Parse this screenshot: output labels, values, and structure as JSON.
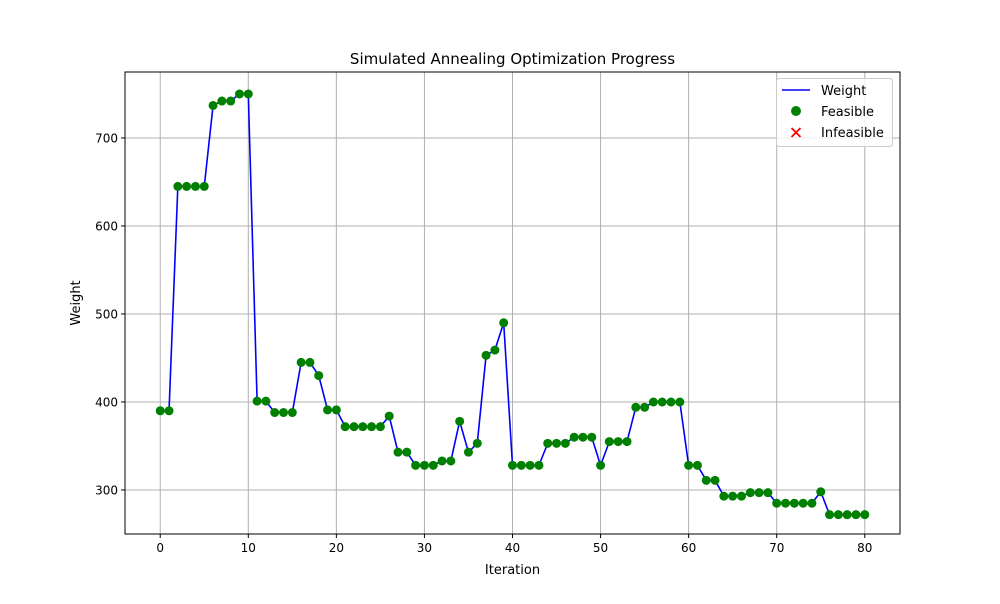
{
  "chart_data": {
    "type": "line",
    "title": "Simulated Annealing Optimization Progress",
    "xlabel": "Iteration",
    "ylabel": "Weight",
    "xlim": [
      -4,
      84
    ],
    "ylim": [
      250,
      775
    ],
    "xticks": [
      0,
      10,
      20,
      30,
      40,
      50,
      60,
      70,
      80
    ],
    "yticks": [
      300,
      400,
      500,
      600,
      700
    ],
    "grid": true,
    "legend_placement": "top-right",
    "legend": {
      "line": "Weight",
      "feasible": "Feasible",
      "infeasible": "Infeasible"
    },
    "colors": {
      "line": "#0000ff",
      "feasible": "#008000",
      "infeasible": "#ff0000",
      "grid": "#b0b0b0"
    },
    "series": [
      {
        "name": "Weight",
        "x": [
          0,
          1,
          2,
          3,
          4,
          5,
          6,
          7,
          8,
          9,
          10,
          11,
          12,
          13,
          14,
          15,
          16,
          17,
          18,
          19,
          20,
          21,
          22,
          23,
          24,
          25,
          26,
          27,
          28,
          29,
          30,
          31,
          32,
          33,
          34,
          35,
          36,
          37,
          38,
          39,
          40,
          41,
          42,
          43,
          44,
          45,
          46,
          47,
          48,
          49,
          50,
          51,
          52,
          53,
          54,
          55,
          56,
          57,
          58,
          59,
          60,
          61,
          62,
          63,
          64,
          65,
          66,
          67,
          68,
          69,
          70,
          71,
          72,
          73,
          74,
          75,
          76,
          77,
          78,
          79,
          80
        ],
        "values": [
          390,
          390,
          645,
          645,
          645,
          645,
          737,
          742,
          742,
          750,
          750,
          401,
          401,
          388,
          388,
          388,
          445,
          445,
          430,
          391,
          391,
          372,
          372,
          372,
          372,
          372,
          384,
          343,
          343,
          328,
          328,
          328,
          333,
          333,
          378,
          343,
          353,
          453,
          459,
          490,
          328,
          328,
          328,
          328,
          353,
          353,
          353,
          360,
          360,
          360,
          328,
          355,
          355,
          355,
          394,
          394,
          400,
          400,
          400,
          400,
          328,
          328,
          311,
          311,
          293,
          293,
          293,
          297,
          297,
          297,
          285,
          285,
          285,
          285,
          285,
          298,
          272,
          272,
          272,
          272,
          272
        ]
      }
    ],
    "feasible_indices": "all",
    "infeasible_points": []
  }
}
